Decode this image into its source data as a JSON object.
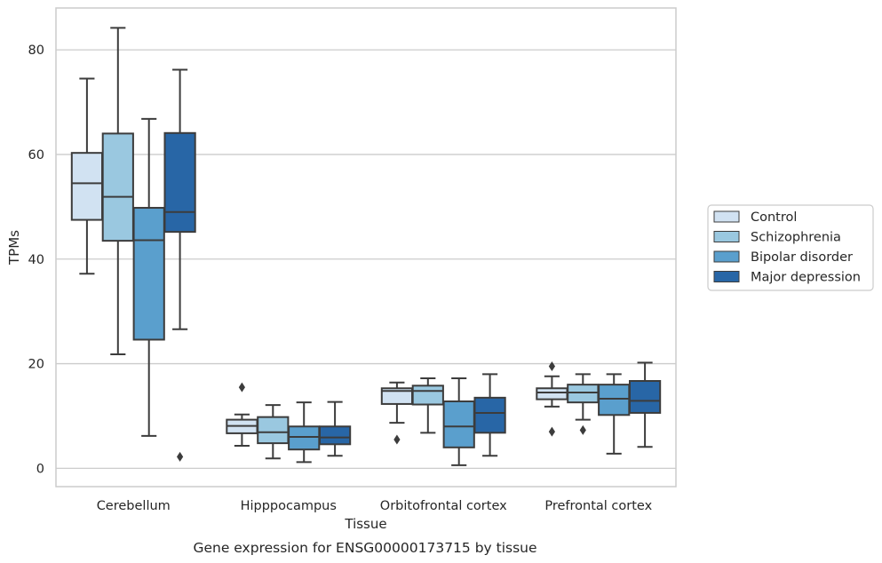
{
  "chart_data": {
    "type": "box",
    "title": "Gene expression for ENSG00000173715 by tissue",
    "xlabel": "Tissue",
    "ylabel": "TPMs",
    "ylim": [
      -3.5,
      88
    ],
    "yticks": [
      0,
      20,
      40,
      60,
      80
    ],
    "grid": "horizontal",
    "legend_position": "right",
    "categories": [
      "Cerebellum",
      "Hipppocampus",
      "Orbitofrontal cortex",
      "Prefrontal cortex"
    ],
    "series": [
      {
        "name": "Control",
        "color": "#d1e2f2",
        "boxes": [
          {
            "whislo": 37.2,
            "q1": 47.5,
            "med": 54.5,
            "q3": 60.3,
            "whishi": 74.5,
            "fliers": []
          },
          {
            "whislo": 4.3,
            "q1": 6.7,
            "med": 8.1,
            "q3": 9.3,
            "whishi": 10.3,
            "fliers": [
              15.5
            ]
          },
          {
            "whislo": 8.7,
            "q1": 12.3,
            "med": 14.8,
            "q3": 15.3,
            "whishi": 16.4,
            "fliers": [
              5.5
            ]
          },
          {
            "whislo": 11.8,
            "q1": 13.2,
            "med": 14.5,
            "q3": 15.3,
            "whishi": 17.6,
            "fliers": [
              19.5,
              7.0
            ]
          }
        ]
      },
      {
        "name": "Schizophrenia",
        "color": "#9ac8e0",
        "boxes": [
          {
            "whislo": 21.8,
            "q1": 43.5,
            "med": 51.9,
            "q3": 64.0,
            "whishi": 84.2,
            "fliers": []
          },
          {
            "whislo": 1.9,
            "q1": 4.8,
            "med": 6.9,
            "q3": 9.8,
            "whishi": 12.1,
            "fliers": []
          },
          {
            "whislo": 6.8,
            "q1": 12.2,
            "med": 14.8,
            "q3": 15.8,
            "whishi": 17.2,
            "fliers": []
          },
          {
            "whislo": 9.3,
            "q1": 12.6,
            "med": 14.5,
            "q3": 16.0,
            "whishi": 18.0,
            "fliers": [
              7.3
            ]
          }
        ]
      },
      {
        "name": "Bipolar disorder",
        "color": "#5a9fcd",
        "boxes": [
          {
            "whislo": 6.2,
            "q1": 24.6,
            "med": 43.6,
            "q3": 49.8,
            "whishi": 66.8,
            "fliers": []
          },
          {
            "whislo": 1.2,
            "q1": 3.6,
            "med": 6.0,
            "q3": 8.0,
            "whishi": 12.6,
            "fliers": []
          },
          {
            "whislo": 0.6,
            "q1": 4.0,
            "med": 8.0,
            "q3": 12.8,
            "whishi": 17.2,
            "fliers": []
          },
          {
            "whislo": 2.8,
            "q1": 10.2,
            "med": 13.3,
            "q3": 16.0,
            "whishi": 18.0,
            "fliers": []
          }
        ]
      },
      {
        "name": "Major depression",
        "color": "#2866a6",
        "boxes": [
          {
            "whislo": 26.6,
            "q1": 45.2,
            "med": 49.0,
            "q3": 64.1,
            "whishi": 76.2,
            "fliers": [
              2.2
            ]
          },
          {
            "whislo": 2.4,
            "q1": 4.6,
            "med": 5.9,
            "q3": 8.0,
            "whishi": 12.7,
            "fliers": []
          },
          {
            "whislo": 2.4,
            "q1": 6.8,
            "med": 10.6,
            "q3": 13.5,
            "whishi": 18.0,
            "fliers": []
          },
          {
            "whislo": 4.1,
            "q1": 10.6,
            "med": 12.9,
            "q3": 16.7,
            "whishi": 20.2,
            "fliers": []
          }
        ]
      }
    ]
  }
}
